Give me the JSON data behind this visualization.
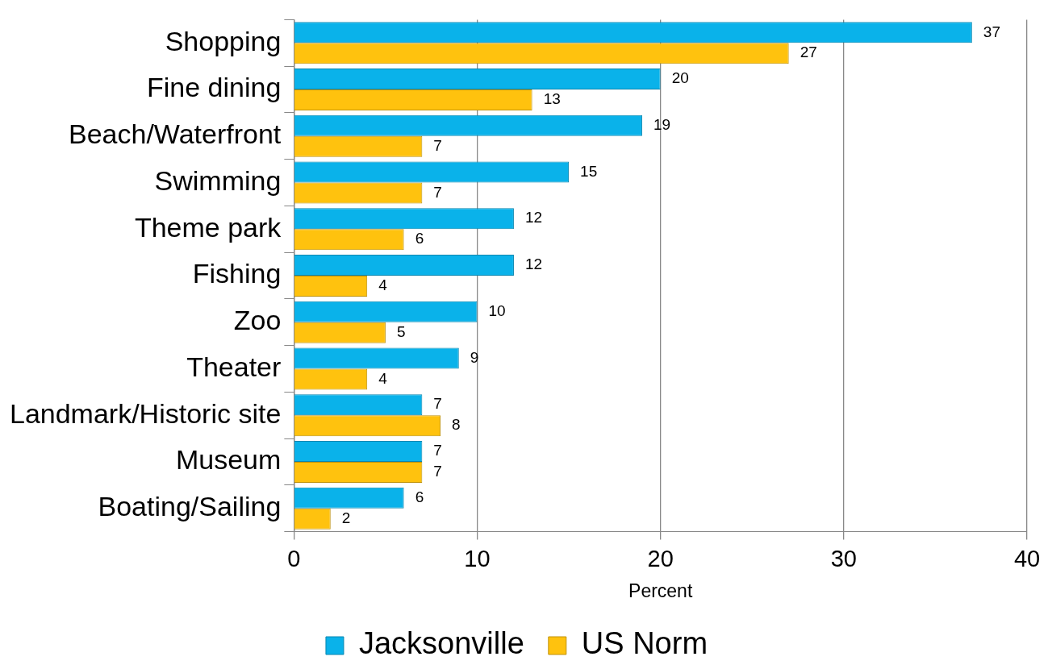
{
  "chart_data": {
    "type": "bar",
    "orientation": "horizontal",
    "xlabel": "Percent",
    "categories": [
      "Shopping",
      "Fine dining",
      "Beach/Waterfront",
      "Swimming",
      "Theme park",
      "Fishing",
      "Zoo",
      "Theater",
      "Landmark/Historic site",
      "Museum",
      "Boating/Sailing"
    ],
    "series": [
      {
        "name": "Jacksonville",
        "color": "#0ab2ea",
        "values": [
          37,
          20,
          19,
          15,
          12,
          12,
          10,
          9,
          7,
          7,
          6
        ]
      },
      {
        "name": "US Norm",
        "color": "#ffc20e",
        "values": [
          27,
          13,
          7,
          7,
          6,
          4,
          5,
          4,
          8,
          7,
          2
        ]
      }
    ],
    "xlim": [
      0,
      40
    ],
    "xticks": [
      0,
      10,
      20,
      30,
      40
    ],
    "grid": "x",
    "legend": "bottom",
    "data_labels": true
  }
}
